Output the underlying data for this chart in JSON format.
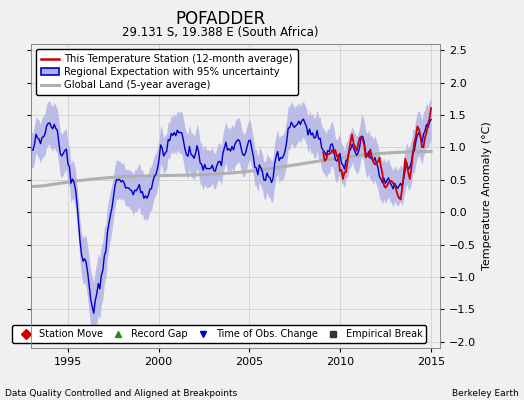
{
  "title": "POFADDER",
  "subtitle": "29.131 S, 19.388 E (South Africa)",
  "ylabel": "Temperature Anomaly (°C)",
  "footer_left": "Data Quality Controlled and Aligned at Breakpoints",
  "footer_right": "Berkeley Earth",
  "xlim": [
    1993.0,
    2015.5
  ],
  "ylim": [
    -2.1,
    2.6
  ],
  "yticks": [
    -2,
    -1.5,
    -1,
    -0.5,
    0,
    0.5,
    1,
    1.5,
    2,
    2.5
  ],
  "xticks": [
    1995,
    2000,
    2005,
    2010,
    2015
  ],
  "legend_labels": [
    "This Temperature Station (12-month average)",
    "Regional Expectation with 95% uncertainty",
    "Global Land (5-year average)"
  ],
  "station_color": "#cc0000",
  "regional_color": "#0000cc",
  "regional_fill_color": "#b0b0e8",
  "global_color": "#b0b0b0",
  "bg_color": "#f0f0f0",
  "grid_color": "#cccccc",
  "legend_marker_colors": {
    "station_move": "#cc0000",
    "record_gap": "#228B22",
    "obs_change": "#0000cc",
    "empirical_break": "#333333"
  }
}
